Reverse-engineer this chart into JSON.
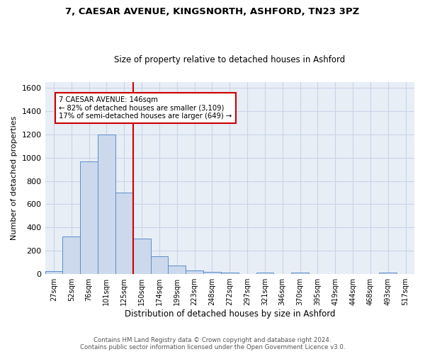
{
  "title": "7, CAESAR AVENUE, KINGSNORTH, ASHFORD, TN23 3PZ",
  "subtitle": "Size of property relative to detached houses in Ashford",
  "xlabel": "Distribution of detached houses by size in Ashford",
  "ylabel": "Number of detached properties",
  "footer_line1": "Contains HM Land Registry data © Crown copyright and database right 2024.",
  "footer_line2": "Contains public sector information licensed under the Open Government Licence v3.0.",
  "bin_labels": [
    "27sqm",
    "52sqm",
    "76sqm",
    "101sqm",
    "125sqm",
    "150sqm",
    "174sqm",
    "199sqm",
    "223sqm",
    "248sqm",
    "272sqm",
    "297sqm",
    "321sqm",
    "346sqm",
    "370sqm",
    "395sqm",
    "419sqm",
    "444sqm",
    "468sqm",
    "493sqm",
    "517sqm"
  ],
  "bar_values": [
    25,
    325,
    970,
    1200,
    700,
    305,
    155,
    75,
    30,
    20,
    12,
    0,
    12,
    0,
    12,
    0,
    0,
    0,
    0,
    12,
    0
  ],
  "bar_color": "#ccd9ed",
  "bar_edge_color": "#5b8dc8",
  "grid_color": "#c8d4e8",
  "bg_color": "#e8eef6",
  "vline_x": 4.5,
  "vline_color": "#cc0000",
  "annotation_text": "7 CAESAR AVENUE: 146sqm\n← 82% of detached houses are smaller (3,109)\n17% of semi-detached houses are larger (649) →",
  "annotation_box_color": "#ffffff",
  "annotation_box_edge": "#cc0000",
  "ylim": [
    0,
    1650
  ],
  "yticks": [
    0,
    200,
    400,
    600,
    800,
    1000,
    1200,
    1400,
    1600
  ]
}
